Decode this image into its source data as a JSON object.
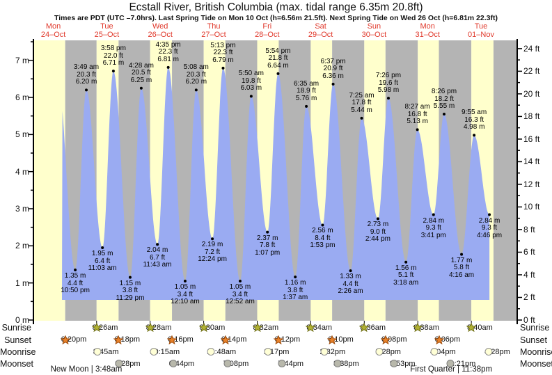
{
  "header": {
    "title": "Ecstall River, British Columbia (max. tidal range 6.35m 20.8ft)",
    "subtitle": "Times are PDT (UTC –7.0hrs). Last Spring Tide on Mon 10 Oct (h=6.56m 21.5ft). Next Spring Tide on Wed 26 Oct (h=6.81m 22.3ft)"
  },
  "days": [
    {
      "name": "Mon",
      "date": "24–Oct"
    },
    {
      "name": "Tue",
      "date": "25–Oct"
    },
    {
      "name": "Wed",
      "date": "26–Oct"
    },
    {
      "name": "Thu",
      "date": "27–Oct"
    },
    {
      "name": "Fri",
      "date": "28–Oct"
    },
    {
      "name": "Sat",
      "date": "29–Oct"
    },
    {
      "name": "Sun",
      "date": "30–Oct"
    },
    {
      "name": "Mon",
      "date": "31–Oct"
    },
    {
      "name": "Tue",
      "date": "01–Nov"
    }
  ],
  "axes": {
    "left_labels": [
      "7 m",
      "6 m",
      "5 m",
      "4 m",
      "3 m",
      "2 m",
      "1 m",
      "0 m"
    ],
    "right_labels": [
      "24 ft",
      "22 ft",
      "20 ft",
      "18 ft",
      "16 ft",
      "14 ft",
      "12 ft",
      "10 ft",
      "8 ft",
      "6 ft",
      "4 ft",
      "2 ft",
      "0 ft"
    ]
  },
  "chart_data": {
    "type": "area",
    "title": "Ecstall River, British Columbia (max. tidal range 6.35m 20.8ft)",
    "x_categories": [
      "Mon 24-Oct",
      "Tue 25-Oct",
      "Wed 26-Oct",
      "Thu 27-Oct",
      "Fri 28-Oct",
      "Sat 29-Oct",
      "Sun 30-Oct",
      "Mon 31-Oct",
      "Tue 01-Nov"
    ],
    "ylabel_left": "m",
    "ylabel_right": "ft",
    "ylim_m": [
      0,
      7.5
    ],
    "ylim_ft": [
      0,
      24
    ],
    "visible_curve_start_hours": 16.9,
    "tide_events": [
      {
        "kind": "low",
        "time": "10:50 pm",
        "height_m": 1.35,
        "height_ft": 4.4,
        "t_hours": 22.833
      },
      {
        "kind": "high",
        "time": "3:49 am",
        "height_m": 6.2,
        "height_ft": 20.3,
        "t_hours": 27.817
      },
      {
        "kind": "low",
        "time": "11:03 am",
        "height_m": 1.95,
        "height_ft": 6.4,
        "t_hours": 35.05
      },
      {
        "kind": "high",
        "time": "3:58 pm",
        "height_m": 6.71,
        "height_ft": 22.0,
        "t_hours": 39.967
      },
      {
        "kind": "low",
        "time": "11:29 pm",
        "height_m": 1.15,
        "height_ft": 3.8,
        "t_hours": 47.483
      },
      {
        "kind": "high",
        "time": "4:28 am",
        "height_m": 6.25,
        "height_ft": 20.5,
        "t_hours": 52.467
      },
      {
        "kind": "low",
        "time": "11:43 am",
        "height_m": 2.04,
        "height_ft": 6.7,
        "t_hours": 59.717
      },
      {
        "kind": "high",
        "time": "4:35 pm",
        "height_m": 6.81,
        "height_ft": 22.3,
        "t_hours": 64.583
      },
      {
        "kind": "low",
        "time": "12:10 am",
        "height_m": 1.05,
        "height_ft": 3.4,
        "t_hours": 72.167
      },
      {
        "kind": "high",
        "time": "5:08 am",
        "height_m": 6.2,
        "height_ft": 20.3,
        "t_hours": 77.133
      },
      {
        "kind": "low",
        "time": "12:24 pm",
        "height_m": 2.19,
        "height_ft": 7.2,
        "t_hours": 84.4
      },
      {
        "kind": "high",
        "time": "5:13 pm",
        "height_m": 6.79,
        "height_ft": 22.3,
        "t_hours": 89.217
      },
      {
        "kind": "low",
        "time": "12:52 am",
        "height_m": 1.05,
        "height_ft": 3.4,
        "t_hours": 96.867
      },
      {
        "kind": "high",
        "time": "5:50 am",
        "height_m": 6.03,
        "height_ft": 19.8,
        "t_hours": 101.833
      },
      {
        "kind": "low",
        "time": "1:07 pm",
        "height_m": 2.37,
        "height_ft": 7.8,
        "t_hours": 109.117
      },
      {
        "kind": "high",
        "time": "5:54 pm",
        "height_m": 6.64,
        "height_ft": 21.8,
        "t_hours": 113.9
      },
      {
        "kind": "low",
        "time": "1:37 am",
        "height_m": 1.16,
        "height_ft": 3.8,
        "t_hours": 121.617
      },
      {
        "kind": "high",
        "time": "6:35 am",
        "height_m": 5.76,
        "height_ft": 18.9,
        "t_hours": 126.583
      },
      {
        "kind": "low",
        "time": "1:53 pm",
        "height_m": 2.56,
        "height_ft": 8.4,
        "t_hours": 133.883
      },
      {
        "kind": "high",
        "time": "6:37 pm",
        "height_m": 6.36,
        "height_ft": 20.9,
        "t_hours": 138.617
      },
      {
        "kind": "low",
        "time": "2:26 am",
        "height_m": 1.33,
        "height_ft": 4.4,
        "t_hours": 146.433
      },
      {
        "kind": "high",
        "time": "7:25 am",
        "height_m": 5.44,
        "height_ft": 17.8,
        "t_hours": 151.417
      },
      {
        "kind": "low",
        "time": "2:44 pm",
        "height_m": 2.73,
        "height_ft": 9.0,
        "t_hours": 158.733
      },
      {
        "kind": "high",
        "time": "7:26 pm",
        "height_m": 5.98,
        "height_ft": 19.6,
        "t_hours": 163.433
      },
      {
        "kind": "low",
        "time": "3:18 am",
        "height_m": 1.56,
        "height_ft": 5.1,
        "t_hours": 171.3
      },
      {
        "kind": "high",
        "time": "8:27 am",
        "height_m": 5.13,
        "height_ft": 16.8,
        "t_hours": 176.45
      },
      {
        "kind": "low",
        "time": "3:41 pm",
        "height_m": 2.84,
        "height_ft": 9.3,
        "t_hours": 183.683
      },
      {
        "kind": "high",
        "time": "8:26 pm",
        "height_m": 5.55,
        "height_ft": 18.2,
        "t_hours": 188.433
      },
      {
        "kind": "low",
        "time": "4:16 am",
        "height_m": 1.77,
        "height_ft": 5.8,
        "t_hours": 196.267
      },
      {
        "kind": "high",
        "time": "9:55 am",
        "height_m": 4.98,
        "height_ft": 16.3,
        "t_hours": 201.917
      },
      {
        "kind": "low",
        "time": "4:46 pm",
        "height_m": 2.84,
        "height_ft": 9.3,
        "t_hours": 208.767
      }
    ]
  },
  "astro": {
    "rows": [
      {
        "label": "Sunrise",
        "icon": "sunrise-star",
        "fill": "#b2b232",
        "stroke": "#6e6e14",
        "events": [
          {
            "time": "8:26am",
            "t_hours": 32.433
          },
          {
            "time": "8:28am",
            "t_hours": 56.467
          },
          {
            "time": "8:30am",
            "t_hours": 80.5
          },
          {
            "time": "8:32am",
            "t_hours": 104.533
          },
          {
            "time": "8:34am",
            "t_hours": 128.567
          },
          {
            "time": "8:36am",
            "t_hours": 152.6
          },
          {
            "time": "8:38am",
            "t_hours": 176.633
          },
          {
            "time": "8:40am",
            "t_hours": 200.667
          }
        ]
      },
      {
        "label": "Sunset",
        "icon": "sunset-star",
        "fill": "#e8822a",
        "stroke": "#9e4a08",
        "events": [
          {
            "time": "6:20pm",
            "t_hours": 18.333
          },
          {
            "time": "6:18pm",
            "t_hours": 42.3
          },
          {
            "time": "6:16pm",
            "t_hours": 66.267
          },
          {
            "time": "6:14pm",
            "t_hours": 90.233
          },
          {
            "time": "6:12pm",
            "t_hours": 114.2
          },
          {
            "time": "6:10pm",
            "t_hours": 138.167
          },
          {
            "time": "6:08pm",
            "t_hours": 162.133
          },
          {
            "time": "6:06pm",
            "t_hours": 186.1
          }
        ]
      },
      {
        "label": "Moonrise",
        "icon": "moonrise-circle",
        "fill": "#ffffd6",
        "stroke": "#8f8f8f",
        "events": [
          {
            "time": "8:45am",
            "t_hours": 32.75
          },
          {
            "time": "10:15am",
            "t_hours": 58.25
          },
          {
            "time": "11:48am",
            "t_hours": 83.8
          },
          {
            "time": "1:17pm",
            "t_hours": 109.283
          },
          {
            "time": "2:32pm",
            "t_hours": 134.533
          },
          {
            "time": "3:28pm",
            "t_hours": 159.467
          },
          {
            "time": "4:04pm",
            "t_hours": 184.067
          },
          {
            "time": "4:28pm",
            "t_hours": 208.467
          }
        ]
      },
      {
        "label": "Moonset",
        "icon": "moonset-circle",
        "fill": "#b8b8ab",
        "stroke": "#7d7d7d",
        "events": [
          {
            "time": "6:28pm",
            "t_hours": 42.467
          },
          {
            "time": "6:44pm",
            "t_hours": 66.733
          },
          {
            "time": "7:08pm",
            "t_hours": 91.133
          },
          {
            "time": "7:44pm",
            "t_hours": 115.733
          },
          {
            "time": "8:38pm",
            "t_hours": 140.633
          },
          {
            "time": "9:53pm",
            "t_hours": 165.883
          },
          {
            "time": "11:21pm",
            "t_hours": 191.35
          }
        ]
      }
    ],
    "phases": [
      {
        "label": "New Moon | 3:48am",
        "t_hours": 27.8
      },
      {
        "label": "First Quarter | 11:38pm",
        "t_hours": 191.633
      }
    ]
  },
  "colors": {
    "day_band": "#ffffcc",
    "night_band": "#b4b4b4",
    "tide_fill": "#9aabf2",
    "date_red": "#e0382b"
  }
}
